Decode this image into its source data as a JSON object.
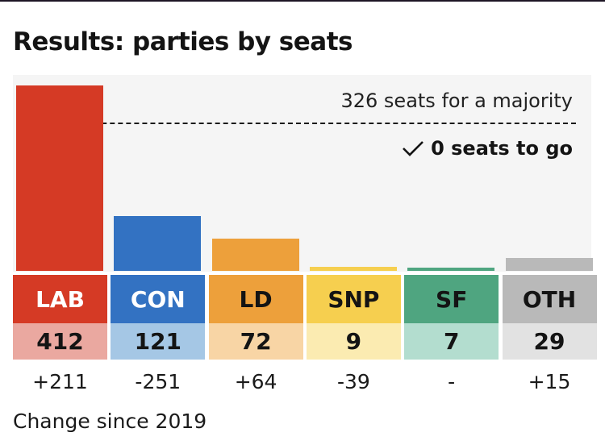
{
  "title": "Results: parties by seats",
  "majority": {
    "label": "326 seats for a majority",
    "seats_to_go": "0 seats to go",
    "icon": "check-icon"
  },
  "footnote": "Change since 2019",
  "chart_data": {
    "type": "bar",
    "title": "Results: parties by seats",
    "categories": [
      "LAB",
      "CON",
      "LD",
      "SNP",
      "SF",
      "OTH"
    ],
    "values": [
      412,
      121,
      72,
      9,
      7,
      29
    ],
    "value_labels": [
      "412",
      "121",
      "72",
      "9",
      "7",
      "29"
    ],
    "changes": [
      "+211",
      "-251",
      "+64",
      "-39",
      "-",
      "+15"
    ],
    "majority_line": 326,
    "colors": [
      "#d53a25",
      "#3372c2",
      "#eda03b",
      "#f6cf4f",
      "#4fa580",
      "#b9b9b9"
    ],
    "label_text_colors": [
      "#ffffff",
      "#ffffff",
      "#141414",
      "#141414",
      "#141414",
      "#141414"
    ],
    "value_bg_colors": [
      "#eaa8a0",
      "#a5c7e5",
      "#f8d5a5",
      "#fbebb1",
      "#b3ddcf",
      "#e2e2e2"
    ],
    "ylim": [
      0,
      412
    ],
    "xlabel": "",
    "ylabel": ""
  }
}
